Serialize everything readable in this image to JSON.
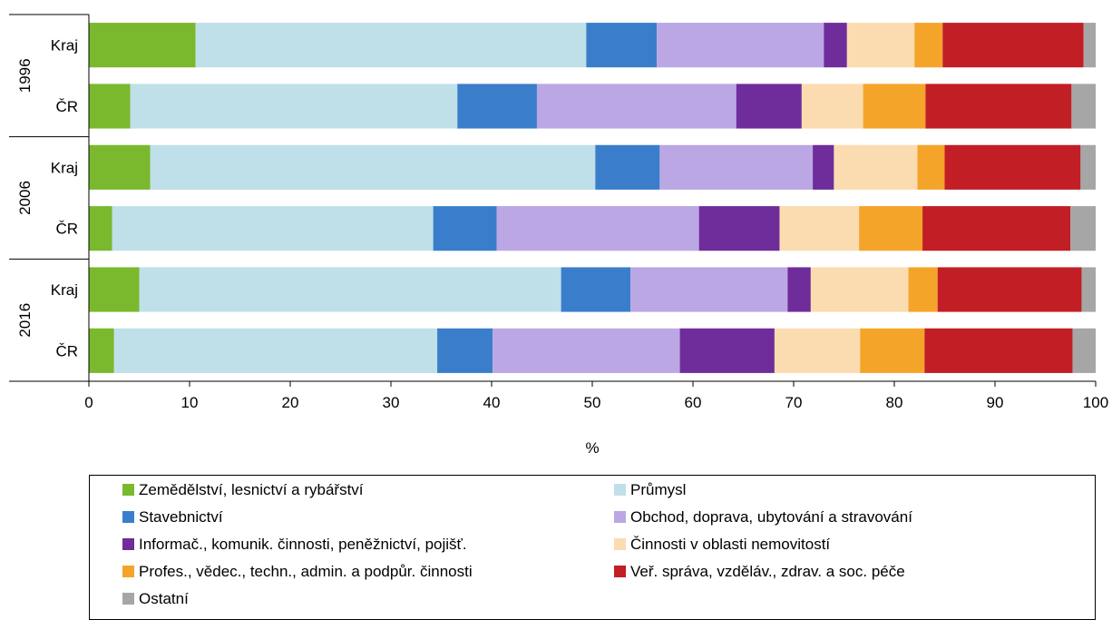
{
  "chart_data": {
    "type": "bar",
    "orientation": "horizontal",
    "stacked": true,
    "groups": [
      {
        "label": "1996",
        "rows": [
          "Kraj",
          "ČR"
        ]
      },
      {
        "label": "2006",
        "rows": [
          "Kraj",
          "ČR"
        ]
      },
      {
        "label": "2016",
        "rows": [
          "Kraj",
          "ČR"
        ]
      }
    ],
    "xlabel": "%",
    "xlim": [
      0,
      100
    ],
    "xticks": [
      "0",
      "10",
      "20",
      "30",
      "40",
      "50",
      "60",
      "70",
      "80",
      "90",
      "100"
    ],
    "legend_position": "bottom",
    "series": [
      {
        "name": "Zemědělství, lesnictví a rybářství",
        "color": "#7ab82e",
        "values": [
          10.6,
          4.1,
          6.1,
          2.3,
          5.0,
          2.5
        ]
      },
      {
        "name": "Průmysl",
        "color": "#bfe0e9",
        "values": [
          38.8,
          32.5,
          44.2,
          31.9,
          41.9,
          32.1
        ]
      },
      {
        "name": "Stavebnictví",
        "color": "#3a7ecb",
        "values": [
          7.0,
          7.9,
          6.4,
          6.3,
          6.9,
          5.5
        ]
      },
      {
        "name": "Obchod, doprava, ubytování a stravování",
        "color": "#bba7e4",
        "values": [
          16.6,
          19.8,
          15.2,
          20.1,
          15.6,
          18.6
        ]
      },
      {
        "name": "Informač., komunik. činnosti, peněžnictví, pojišť.",
        "color": "#6e2d9b",
        "values": [
          2.3,
          6.5,
          2.1,
          8.0,
          2.3,
          9.4
        ]
      },
      {
        "name": "Činnosti v oblasti nemovitostí",
        "color": "#fbdcb0",
        "values": [
          6.7,
          6.1,
          8.3,
          7.9,
          9.7,
          8.5
        ]
      },
      {
        "name": "Profes., vědec., techn., admin. a podpůr. činnosti",
        "color": "#f5a42a",
        "values": [
          2.8,
          6.2,
          2.7,
          6.3,
          2.9,
          6.4
        ]
      },
      {
        "name": "Veř. správa, vzděláv., zdrav. a soc. péče",
        "color": "#c11e25",
        "values": [
          14.0,
          14.5,
          13.5,
          14.7,
          14.3,
          14.7
        ]
      },
      {
        "name": "Ostatní",
        "color": "#a6a6a6",
        "values": [
          1.2,
          2.4,
          1.5,
          2.5,
          1.4,
          2.3
        ]
      }
    ]
  }
}
